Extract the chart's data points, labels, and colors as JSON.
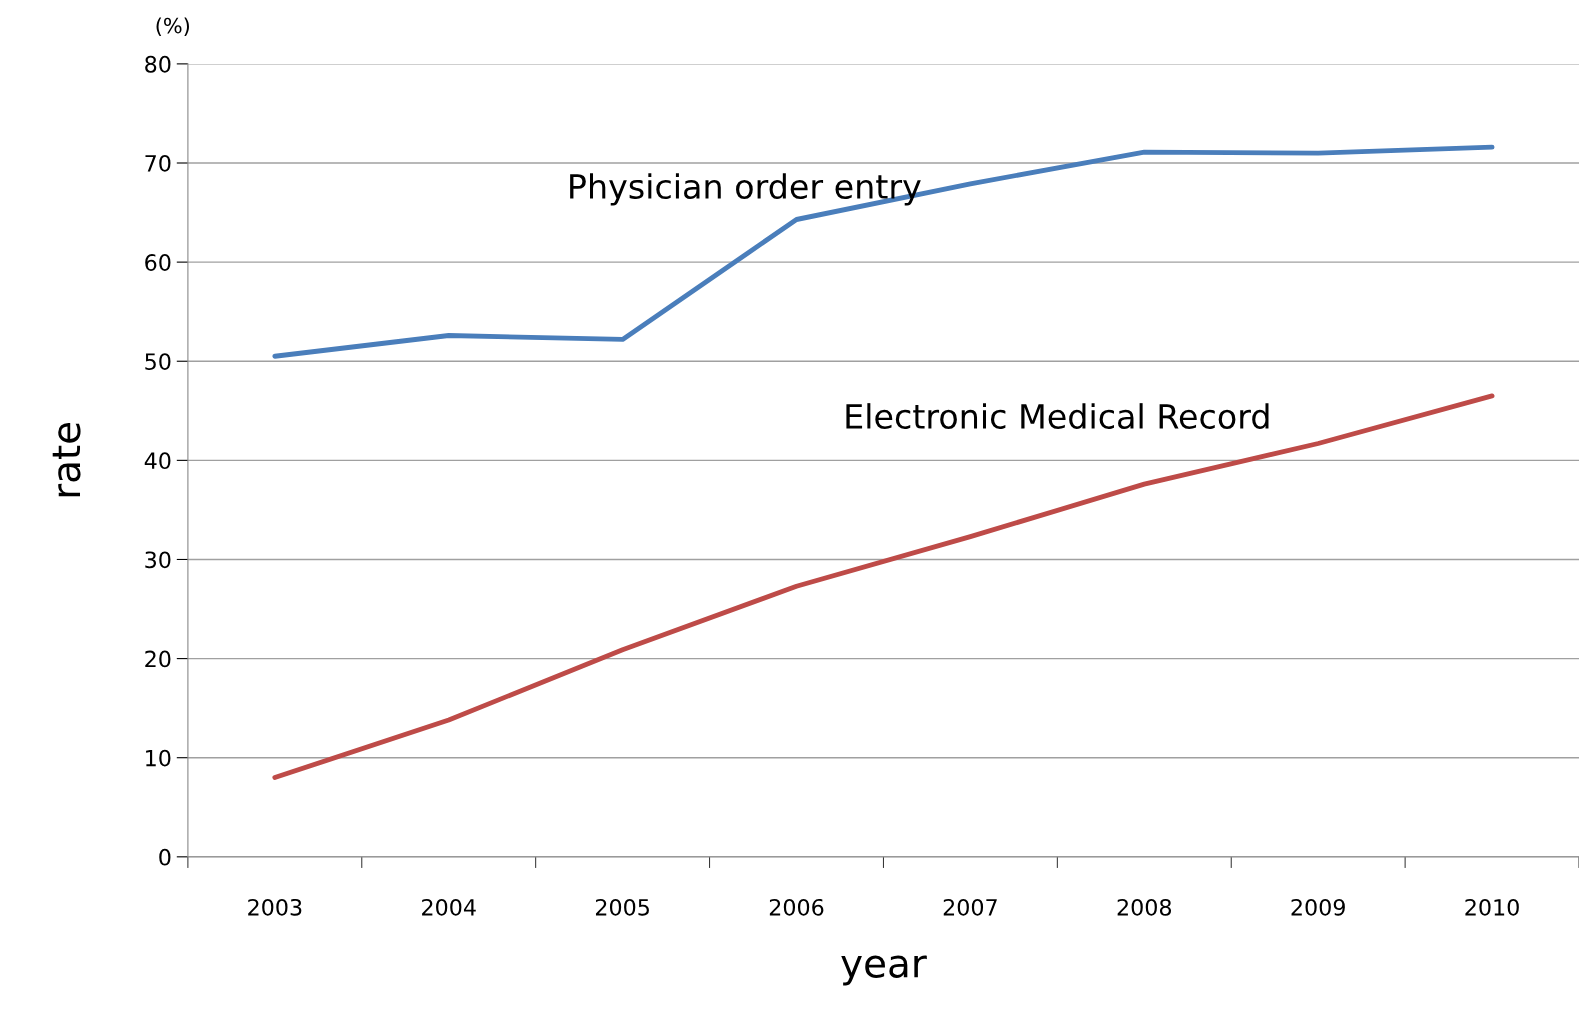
{
  "chart_data": {
    "type": "line",
    "xlabel": "year",
    "ylabel": "rate",
    "annotations": [
      "(%)"
    ],
    "categories": [
      "2003",
      "2004",
      "2005",
      "2006",
      "2007",
      "2008",
      "2009",
      "2010"
    ],
    "series": [
      {
        "name": "Physician order entry",
        "color": "#4a7ebb",
        "values": [
          50.5,
          52.6,
          52.2,
          64.3,
          67.9,
          71.1,
          71.0,
          71.6
        ]
      },
      {
        "name": "Electronic Medical Record",
        "color": "#be4b48",
        "values": [
          8.0,
          13.8,
          20.9,
          27.3,
          32.3,
          37.6,
          41.7,
          46.5
        ]
      }
    ],
    "ylim": [
      0,
      80
    ],
    "yticks": [
      0,
      10,
      20,
      30,
      40,
      50,
      60,
      70,
      80
    ],
    "grid": "y",
    "legend": false,
    "marker": "none",
    "line_style": "solid"
  }
}
